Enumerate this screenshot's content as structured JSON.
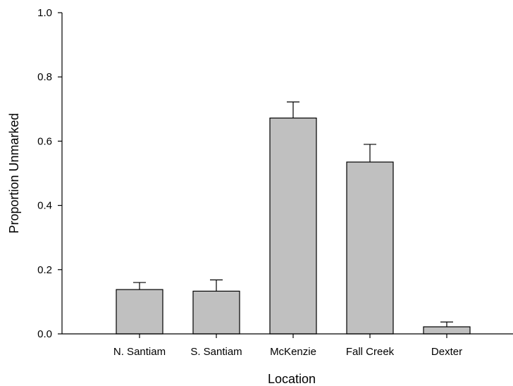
{
  "chart_data": {
    "type": "bar",
    "title": "",
    "xlabel": "Location",
    "ylabel": "Proportion Unmarked",
    "categories": [
      "N. Santiam",
      "S. Santiam",
      "McKenzie",
      "Fall Creek",
      "Dexter"
    ],
    "values": [
      0.138,
      0.133,
      0.672,
      0.535,
      0.022
    ],
    "error_upper": [
      0.16,
      0.168,
      0.722,
      0.59,
      0.037
    ],
    "ylim": [
      0.0,
      1.0
    ],
    "yticks": [
      "0.0",
      "0.2",
      "0.4",
      "0.6",
      "0.8",
      "1.0"
    ],
    "grid": false,
    "legend": "none",
    "colors": {
      "bar_fill": "#c0c0c0",
      "bar_stroke": "#000000",
      "axis": "#000000"
    }
  }
}
